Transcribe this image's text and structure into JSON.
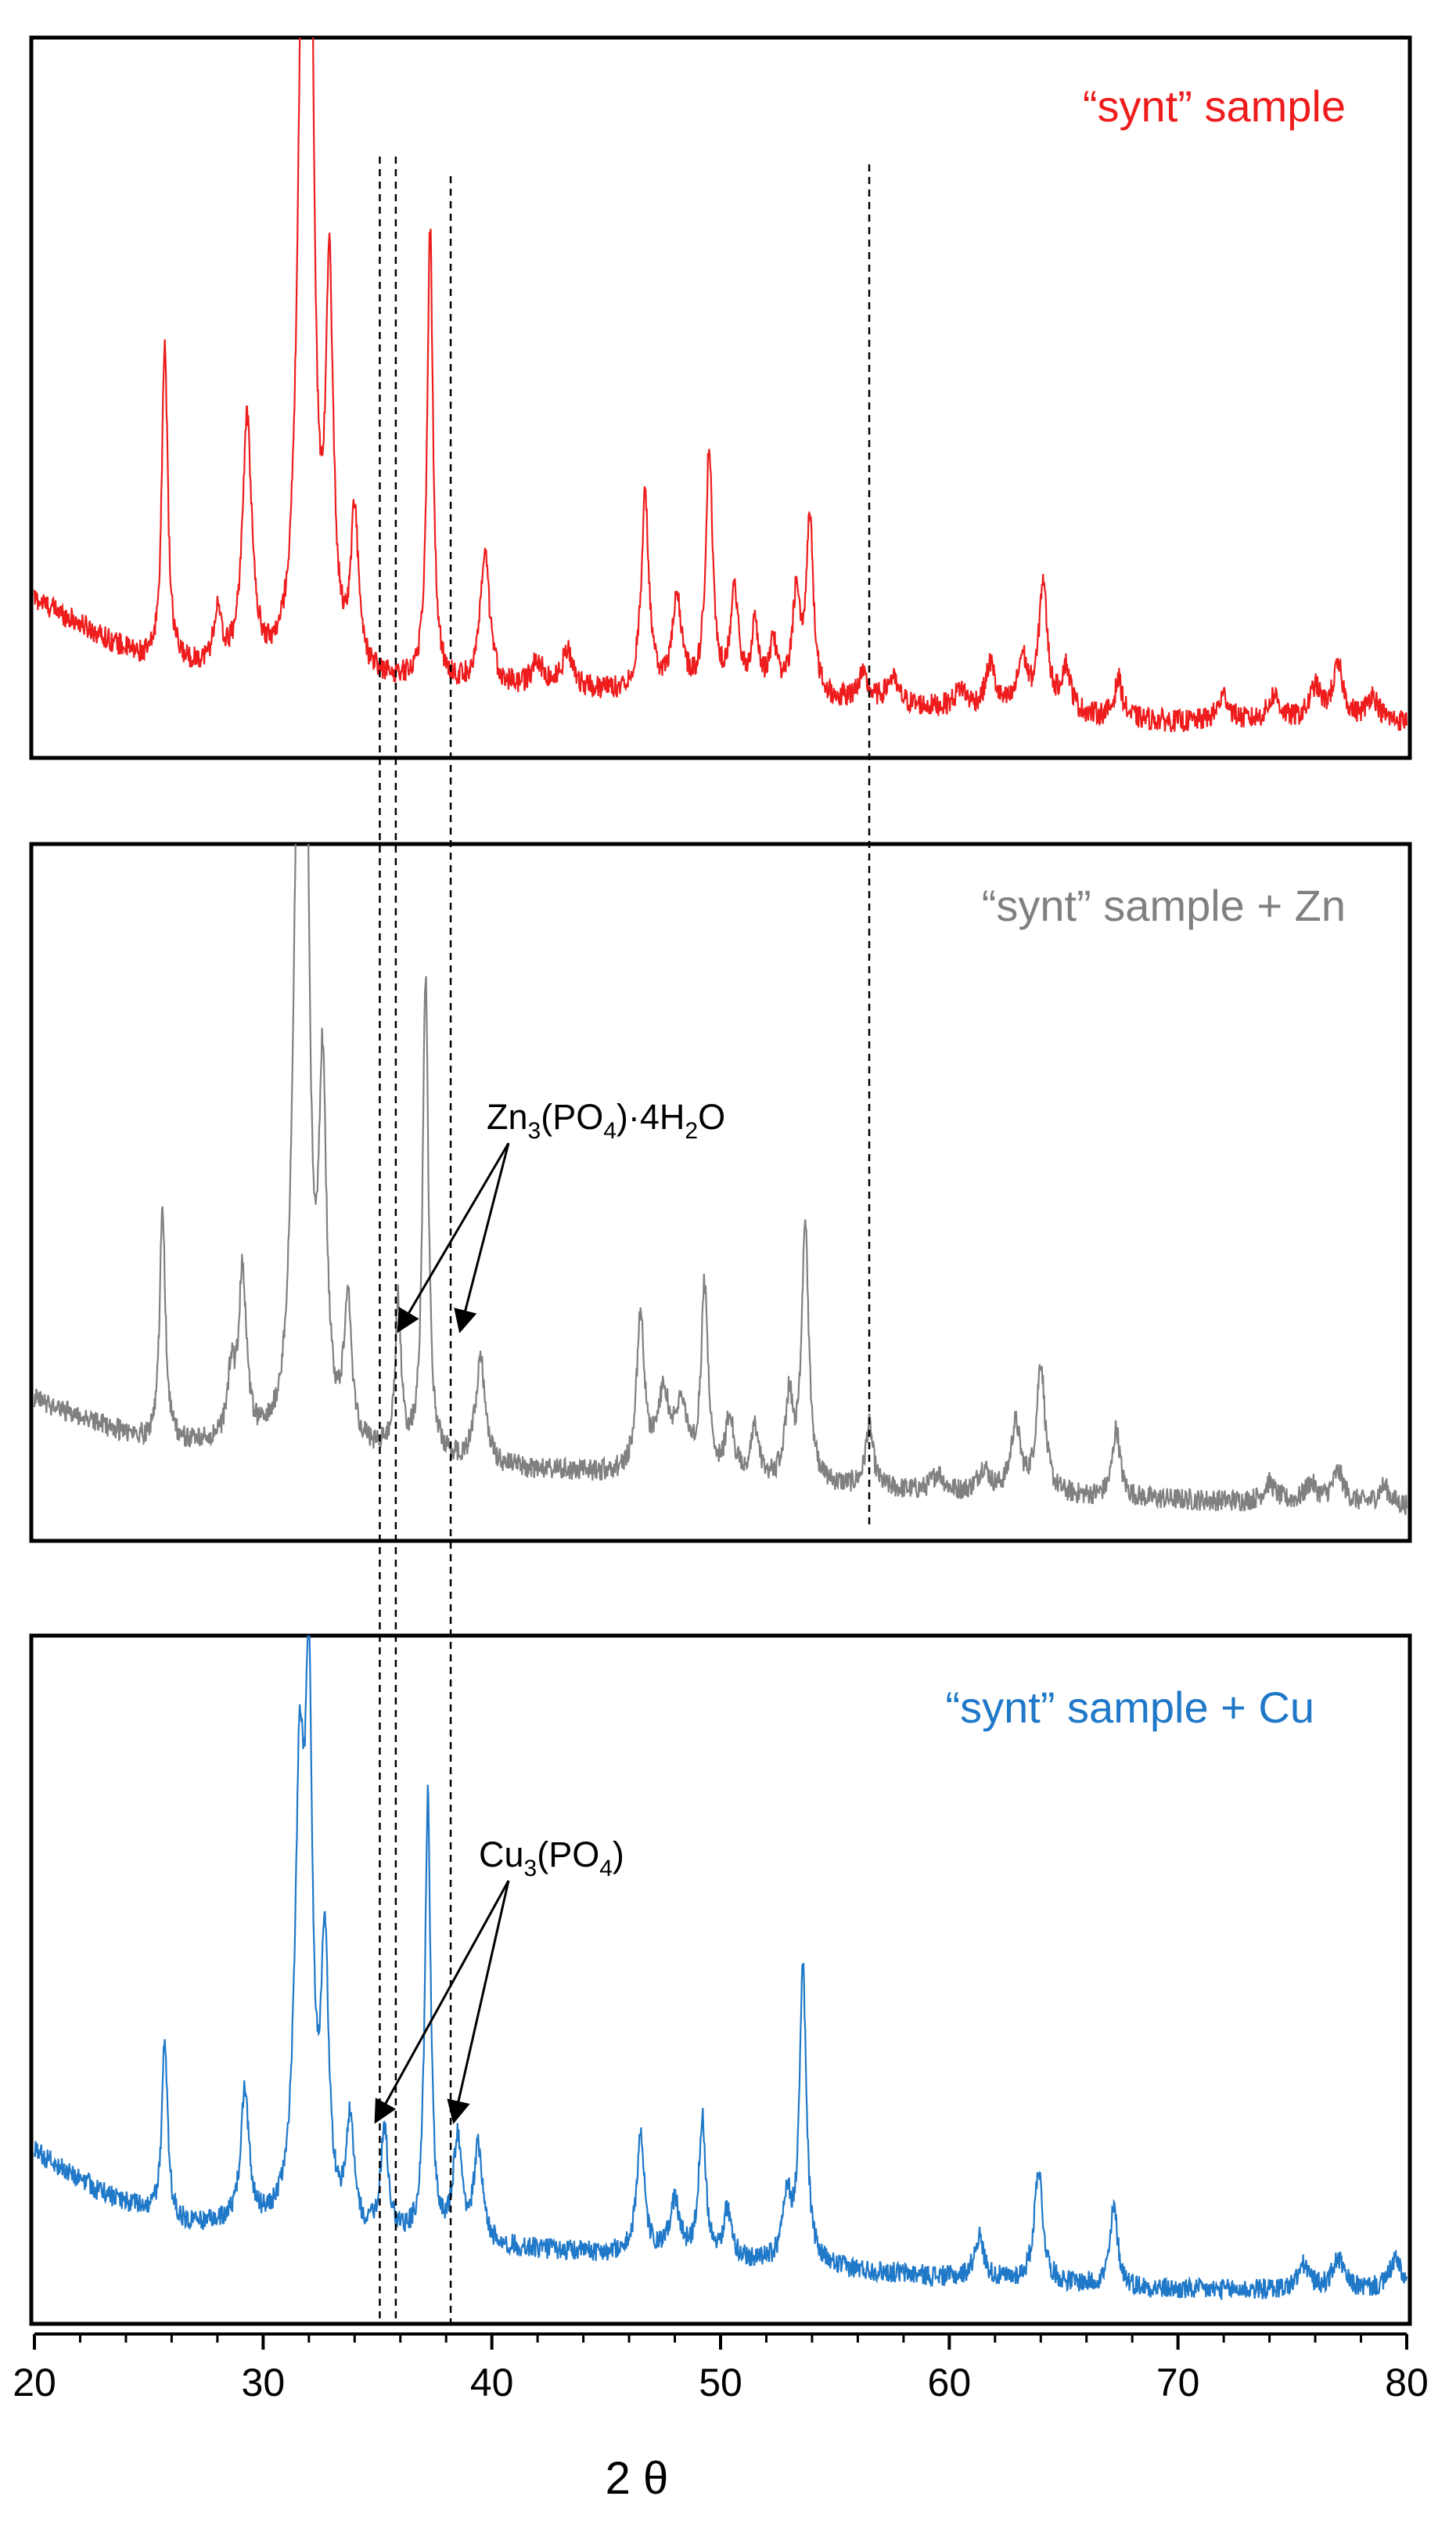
{
  "chart_data": {
    "type": "line",
    "xlabel": "2 θ",
    "xlim": [
      20,
      80
    ],
    "x_ticks": [
      20,
      30,
      40,
      50,
      60,
      70,
      80
    ],
    "x_tick_labels": [
      "20",
      "30",
      "40",
      "50",
      "60",
      "70",
      "80"
    ],
    "grid": false,
    "reference_lines_x": [
      35.1,
      35.8,
      38.2,
      56.5
    ],
    "panels": [
      {
        "title": "“synt” sample",
        "color": "#ee1c1c",
        "baseline": [
          [
            20,
            0.22
          ],
          [
            25,
            0.12
          ],
          [
            30,
            0.1
          ],
          [
            35,
            0.09
          ],
          [
            40,
            0.08
          ],
          [
            50,
            0.07
          ],
          [
            60,
            0.05
          ],
          [
            70,
            0.03
          ],
          [
            80,
            0.03
          ]
        ],
        "peaks": [
          {
            "x": 25.7,
            "h": 0.5,
            "w": 0.15
          },
          {
            "x": 28.0,
            "h": 0.08,
            "w": 0.2
          },
          {
            "x": 29.3,
            "h": 0.38,
            "w": 0.25
          },
          {
            "x": 31.7,
            "h": 0.98,
            "w": 0.25
          },
          {
            "x": 32.1,
            "h": 0.88,
            "w": 0.18
          },
          {
            "x": 32.9,
            "h": 0.58,
            "w": 0.2
          },
          {
            "x": 34.0,
            "h": 0.24,
            "w": 0.2
          },
          {
            "x": 37.3,
            "h": 0.7,
            "w": 0.15
          },
          {
            "x": 39.7,
            "h": 0.2,
            "w": 0.25
          },
          {
            "x": 42.0,
            "h": 0.04,
            "w": 0.3
          },
          {
            "x": 43.3,
            "h": 0.06,
            "w": 0.3
          },
          {
            "x": 46.7,
            "h": 0.3,
            "w": 0.2
          },
          {
            "x": 48.1,
            "h": 0.14,
            "w": 0.25
          },
          {
            "x": 49.5,
            "h": 0.37,
            "w": 0.18
          },
          {
            "x": 50.6,
            "h": 0.16,
            "w": 0.2
          },
          {
            "x": 51.5,
            "h": 0.1,
            "w": 0.2
          },
          {
            "x": 52.3,
            "h": 0.08,
            "w": 0.2
          },
          {
            "x": 53.3,
            "h": 0.15,
            "w": 0.2
          },
          {
            "x": 53.9,
            "h": 0.28,
            "w": 0.18
          },
          {
            "x": 56.2,
            "h": 0.04,
            "w": 0.3
          },
          {
            "x": 57.5,
            "h": 0.04,
            "w": 0.3
          },
          {
            "x": 60.5,
            "h": 0.03,
            "w": 0.3
          },
          {
            "x": 61.8,
            "h": 0.07,
            "w": 0.25
          },
          {
            "x": 63.2,
            "h": 0.08,
            "w": 0.25
          },
          {
            "x": 64.1,
            "h": 0.2,
            "w": 0.22
          },
          {
            "x": 65.1,
            "h": 0.07,
            "w": 0.25
          },
          {
            "x": 67.4,
            "h": 0.06,
            "w": 0.2
          },
          {
            "x": 72.0,
            "h": 0.04,
            "w": 0.3
          },
          {
            "x": 74.2,
            "h": 0.04,
            "w": 0.3
          },
          {
            "x": 76.0,
            "h": 0.05,
            "w": 0.3
          },
          {
            "x": 77.0,
            "h": 0.08,
            "w": 0.3
          },
          {
            "x": 78.5,
            "h": 0.04,
            "w": 0.3
          }
        ]
      },
      {
        "title": "“synt” sample + Zn",
        "color": "#808080",
        "baseline": [
          [
            20,
            0.2
          ],
          [
            25,
            0.13
          ],
          [
            30,
            0.12
          ],
          [
            35,
            0.11
          ],
          [
            40,
            0.09
          ],
          [
            50,
            0.07
          ],
          [
            60,
            0.05
          ],
          [
            70,
            0.04
          ],
          [
            80,
            0.03
          ]
        ],
        "peaks": [
          {
            "x": 25.6,
            "h": 0.37,
            "w": 0.15
          },
          {
            "x": 28.6,
            "h": 0.1,
            "w": 0.2
          },
          {
            "x": 29.1,
            "h": 0.27,
            "w": 0.2
          },
          {
            "x": 31.5,
            "h": 0.94,
            "w": 0.25
          },
          {
            "x": 31.9,
            "h": 0.82,
            "w": 0.18
          },
          {
            "x": 32.6,
            "h": 0.56,
            "w": 0.2
          },
          {
            "x": 33.7,
            "h": 0.23,
            "w": 0.2
          },
          {
            "x": 35.9,
            "h": 0.24,
            "w": 0.15
          },
          {
            "x": 37.1,
            "h": 0.77,
            "w": 0.15
          },
          {
            "x": 39.5,
            "h": 0.17,
            "w": 0.25
          },
          {
            "x": 46.5,
            "h": 0.25,
            "w": 0.2
          },
          {
            "x": 47.5,
            "h": 0.12,
            "w": 0.35
          },
          {
            "x": 48.3,
            "h": 0.1,
            "w": 0.3
          },
          {
            "x": 49.3,
            "h": 0.3,
            "w": 0.18
          },
          {
            "x": 50.4,
            "h": 0.1,
            "w": 0.2
          },
          {
            "x": 51.5,
            "h": 0.08,
            "w": 0.2
          },
          {
            "x": 53.0,
            "h": 0.13,
            "w": 0.2
          },
          {
            "x": 53.7,
            "h": 0.42,
            "w": 0.18
          },
          {
            "x": 56.5,
            "h": 0.1,
            "w": 0.2
          },
          {
            "x": 59.5,
            "h": 0.03,
            "w": 0.3
          },
          {
            "x": 61.5,
            "h": 0.04,
            "w": 0.3
          },
          {
            "x": 62.9,
            "h": 0.11,
            "w": 0.25
          },
          {
            "x": 64.0,
            "h": 0.21,
            "w": 0.22
          },
          {
            "x": 67.3,
            "h": 0.11,
            "w": 0.2
          },
          {
            "x": 74.0,
            "h": 0.03,
            "w": 0.3
          },
          {
            "x": 75.8,
            "h": 0.03,
            "w": 0.3
          },
          {
            "x": 77.0,
            "h": 0.05,
            "w": 0.3
          },
          {
            "x": 79.0,
            "h": 0.03,
            "w": 0.3
          }
        ],
        "annotation": {
          "main": "Zn",
          "sub1": "3",
          "mid": "(PO",
          "sub2": "4",
          "tail": ")·4H",
          "sub3": "2",
          "end": "O",
          "arrow_targets_x": [
            35.8,
            38.2
          ]
        }
      },
      {
        "title": "“synt” sample + Cu",
        "color": "#1f78c8",
        "baseline": [
          [
            20,
            0.26
          ],
          [
            23,
            0.19
          ],
          [
            26,
            0.14
          ],
          [
            30,
            0.13
          ],
          [
            35,
            0.11
          ],
          [
            40,
            0.1
          ],
          [
            50,
            0.08
          ],
          [
            60,
            0.05
          ],
          [
            70,
            0.03
          ],
          [
            80,
            0.03
          ]
        ],
        "peaks": [
          {
            "x": 25.7,
            "h": 0.3,
            "w": 0.15
          },
          {
            "x": 29.2,
            "h": 0.22,
            "w": 0.22
          },
          {
            "x": 31.6,
            "h": 0.72,
            "w": 0.25
          },
          {
            "x": 32.0,
            "h": 0.78,
            "w": 0.18
          },
          {
            "x": 32.7,
            "h": 0.45,
            "w": 0.2
          },
          {
            "x": 33.8,
            "h": 0.18,
            "w": 0.2
          },
          {
            "x": 35.3,
            "h": 0.18,
            "w": 0.2
          },
          {
            "x": 37.2,
            "h": 0.74,
            "w": 0.15
          },
          {
            "x": 38.5,
            "h": 0.17,
            "w": 0.22
          },
          {
            "x": 39.4,
            "h": 0.16,
            "w": 0.22
          },
          {
            "x": 46.5,
            "h": 0.2,
            "w": 0.2
          },
          {
            "x": 48.0,
            "h": 0.09,
            "w": 0.25
          },
          {
            "x": 49.2,
            "h": 0.23,
            "w": 0.18
          },
          {
            "x": 50.3,
            "h": 0.08,
            "w": 0.2
          },
          {
            "x": 52.9,
            "h": 0.11,
            "w": 0.2
          },
          {
            "x": 53.6,
            "h": 0.49,
            "w": 0.18
          },
          {
            "x": 61.3,
            "h": 0.07,
            "w": 0.25
          },
          {
            "x": 63.9,
            "h": 0.19,
            "w": 0.22
          },
          {
            "x": 67.2,
            "h": 0.13,
            "w": 0.2
          },
          {
            "x": 75.5,
            "h": 0.04,
            "w": 0.3
          },
          {
            "x": 77.0,
            "h": 0.05,
            "w": 0.3
          },
          {
            "x": 79.5,
            "h": 0.05,
            "w": 0.3
          }
        ],
        "annotation": {
          "main": "Cu",
          "sub1": "3",
          "mid": "(PO",
          "sub2": "4",
          "tail": ")",
          "arrow_targets_x": [
            35.1,
            38.2
          ]
        }
      }
    ]
  }
}
